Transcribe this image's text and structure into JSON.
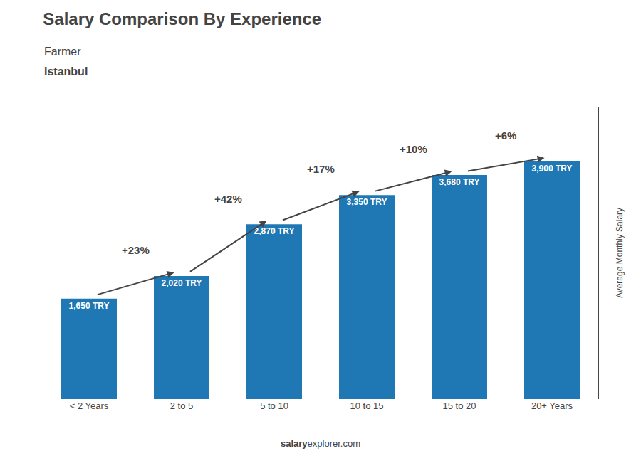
{
  "chart_data": {
    "type": "bar",
    "title": "Salary Comparison By Experience",
    "subtitle": [
      "Farmer",
      "Istanbul"
    ],
    "y_label": "Average Monthly Salary",
    "footer": [
      "salary",
      "explorer.com"
    ],
    "categories": [
      "< 2 Years",
      "2 to 5",
      "5 to 10",
      "10 to 15",
      "15 to 20",
      "20+ Years"
    ],
    "values": [
      1650,
      2020,
      2870,
      3350,
      3680,
      3900
    ],
    "value_labels": [
      "1,650 TRY",
      "2,020 TRY",
      "2,870 TRY",
      "3,350 TRY",
      "3,680 TRY",
      "3,900 TRY"
    ],
    "data_labels": true,
    "annotations": [
      "+23%",
      "+42%",
      "+17%",
      "+10%",
      "+6%"
    ],
    "ylim": [
      0,
      4800
    ],
    "grid": false,
    "tick_labels": "x"
  }
}
